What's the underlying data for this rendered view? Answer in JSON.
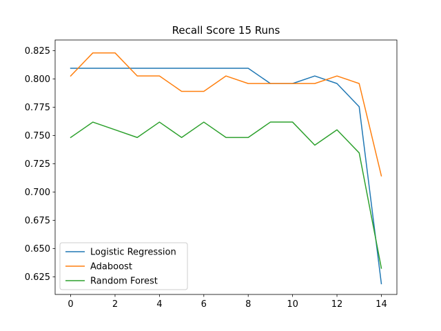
{
  "chart_data": {
    "type": "line",
    "title": "Recall Score 15 Runs",
    "xlabel": "",
    "ylabel": "",
    "x": [
      0,
      1,
      2,
      3,
      4,
      5,
      6,
      7,
      8,
      9,
      10,
      11,
      12,
      13,
      14
    ],
    "xlim": [
      -0.7,
      14.7
    ],
    "ylim": [
      0.6095,
      0.8345
    ],
    "xticks": [
      0,
      2,
      4,
      6,
      8,
      10,
      12,
      14
    ],
    "xtick_labels": [
      "0",
      "2",
      "4",
      "6",
      "8",
      "10",
      "12",
      "14"
    ],
    "yticks": [
      0.625,
      0.65,
      0.675,
      0.7,
      0.725,
      0.75,
      0.775,
      0.8,
      0.825
    ],
    "ytick_labels": [
      "0.625",
      "0.650",
      "0.675",
      "0.700",
      "0.725",
      "0.750",
      "0.775",
      "0.800",
      "0.825"
    ],
    "grid": false,
    "legend_position": "lower-left",
    "series": [
      {
        "name": "Logistic Regression",
        "color": "#1f77b4",
        "values": [
          0.8095,
          0.8095,
          0.8095,
          0.8095,
          0.8095,
          0.8095,
          0.8095,
          0.8095,
          0.8095,
          0.796,
          0.796,
          0.8027,
          0.796,
          0.7755,
          0.619
        ]
      },
      {
        "name": "Adaboost",
        "color": "#ff7f0e",
        "values": [
          0.8027,
          0.8231,
          0.8231,
          0.8027,
          0.8027,
          0.7891,
          0.7891,
          0.8027,
          0.796,
          0.796,
          0.796,
          0.796,
          0.8027,
          0.796,
          0.7143
        ]
      },
      {
        "name": "Random Forest",
        "color": "#2ca02c",
        "values": [
          0.7483,
          0.7619,
          0.7551,
          0.7483,
          0.7619,
          0.7483,
          0.7619,
          0.7483,
          0.7483,
          0.7619,
          0.7619,
          0.7415,
          0.7551,
          0.7347,
          0.6327
        ]
      }
    ]
  }
}
